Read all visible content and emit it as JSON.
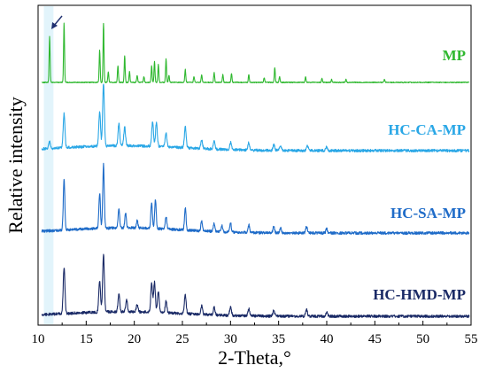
{
  "chart_data": {
    "type": "line",
    "xlabel": "2-Theta,°",
    "ylabel": "Relative intensity",
    "xlim": [
      10,
      55
    ],
    "x_ticks": [
      "10",
      "15",
      "20",
      "25",
      "30",
      "35",
      "40",
      "45",
      "50",
      "55"
    ],
    "y_ticks_labeled": false,
    "highlight_band": {
      "x_from": 10.6,
      "x_to": 11.6,
      "color": "#e2f4fb"
    },
    "arrow_marker": {
      "points_to_x": 11.2,
      "series": "MP",
      "color": "#1f3070"
    },
    "series": [
      {
        "name": "MP",
        "color": "#2fb82f",
        "peaks": [
          {
            "x": 11.2,
            "h": 0.78
          },
          {
            "x": 12.7,
            "h": 1.0
          },
          {
            "x": 16.4,
            "h": 0.55
          },
          {
            "x": 16.8,
            "h": 1.0
          },
          {
            "x": 17.3,
            "h": 0.18
          },
          {
            "x": 18.3,
            "h": 0.28
          },
          {
            "x": 19.0,
            "h": 0.45
          },
          {
            "x": 19.5,
            "h": 0.18
          },
          {
            "x": 20.3,
            "h": 0.12
          },
          {
            "x": 21.0,
            "h": 0.1
          },
          {
            "x": 21.8,
            "h": 0.28
          },
          {
            "x": 22.1,
            "h": 0.35
          },
          {
            "x": 22.5,
            "h": 0.3
          },
          {
            "x": 23.3,
            "h": 0.4
          },
          {
            "x": 23.6,
            "h": 0.12
          },
          {
            "x": 25.3,
            "h": 0.22
          },
          {
            "x": 26.2,
            "h": 0.1
          },
          {
            "x": 27.0,
            "h": 0.13
          },
          {
            "x": 28.3,
            "h": 0.17
          },
          {
            "x": 29.2,
            "h": 0.13
          },
          {
            "x": 30.1,
            "h": 0.15
          },
          {
            "x": 31.9,
            "h": 0.13
          },
          {
            "x": 33.5,
            "h": 0.08
          },
          {
            "x": 34.6,
            "h": 0.25
          },
          {
            "x": 35.1,
            "h": 0.1
          },
          {
            "x": 37.8,
            "h": 0.09
          },
          {
            "x": 39.5,
            "h": 0.07
          },
          {
            "x": 40.5,
            "h": 0.05
          },
          {
            "x": 42.0,
            "h": 0.05
          },
          {
            "x": 46.0,
            "h": 0.05
          }
        ]
      },
      {
        "name": "HC-CA-MP",
        "color": "#2aa7e6",
        "peaks": [
          {
            "x": 11.2,
            "h": 0.12
          },
          {
            "x": 12.7,
            "h": 0.55
          },
          {
            "x": 16.4,
            "h": 0.55
          },
          {
            "x": 16.8,
            "h": 1.0
          },
          {
            "x": 18.4,
            "h": 0.35
          },
          {
            "x": 19.0,
            "h": 0.3
          },
          {
            "x": 21.9,
            "h": 0.4
          },
          {
            "x": 22.3,
            "h": 0.38
          },
          {
            "x": 23.3,
            "h": 0.22
          },
          {
            "x": 25.3,
            "h": 0.35
          },
          {
            "x": 27.0,
            "h": 0.14
          },
          {
            "x": 28.3,
            "h": 0.12
          },
          {
            "x": 30.0,
            "h": 0.12
          },
          {
            "x": 31.9,
            "h": 0.12
          },
          {
            "x": 34.5,
            "h": 0.1
          },
          {
            "x": 35.2,
            "h": 0.08
          },
          {
            "x": 38.0,
            "h": 0.07
          },
          {
            "x": 40.0,
            "h": 0.06
          }
        ]
      },
      {
        "name": "HC-SA-MP",
        "color": "#1e6bc8",
        "peaks": [
          {
            "x": 12.7,
            "h": 0.8
          },
          {
            "x": 16.4,
            "h": 0.55
          },
          {
            "x": 16.8,
            "h": 1.0
          },
          {
            "x": 18.4,
            "h": 0.3
          },
          {
            "x": 19.1,
            "h": 0.25
          },
          {
            "x": 20.3,
            "h": 0.12
          },
          {
            "x": 21.8,
            "h": 0.4
          },
          {
            "x": 22.2,
            "h": 0.45
          },
          {
            "x": 23.3,
            "h": 0.2
          },
          {
            "x": 25.3,
            "h": 0.35
          },
          {
            "x": 27.0,
            "h": 0.15
          },
          {
            "x": 28.3,
            "h": 0.13
          },
          {
            "x": 29.1,
            "h": 0.1
          },
          {
            "x": 30.0,
            "h": 0.15
          },
          {
            "x": 31.9,
            "h": 0.12
          },
          {
            "x": 34.5,
            "h": 0.1
          },
          {
            "x": 35.2,
            "h": 0.08
          },
          {
            "x": 37.9,
            "h": 0.1
          },
          {
            "x": 40.0,
            "h": 0.07
          }
        ]
      },
      {
        "name": "HC-HMD-MP",
        "color": "#1a2a66",
        "peaks": [
          {
            "x": 12.7,
            "h": 0.8
          },
          {
            "x": 16.4,
            "h": 0.55
          },
          {
            "x": 16.8,
            "h": 1.0
          },
          {
            "x": 18.4,
            "h": 0.3
          },
          {
            "x": 19.2,
            "h": 0.2
          },
          {
            "x": 20.3,
            "h": 0.12
          },
          {
            "x": 21.8,
            "h": 0.5
          },
          {
            "x": 22.1,
            "h": 0.52
          },
          {
            "x": 22.5,
            "h": 0.35
          },
          {
            "x": 23.3,
            "h": 0.2
          },
          {
            "x": 25.3,
            "h": 0.33
          },
          {
            "x": 27.0,
            "h": 0.15
          },
          {
            "x": 28.3,
            "h": 0.13
          },
          {
            "x": 30.0,
            "h": 0.15
          },
          {
            "x": 31.9,
            "h": 0.12
          },
          {
            "x": 34.5,
            "h": 0.1
          },
          {
            "x": 37.9,
            "h": 0.12
          },
          {
            "x": 40.0,
            "h": 0.08
          }
        ]
      }
    ]
  }
}
